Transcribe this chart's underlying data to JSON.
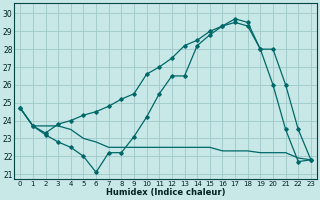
{
  "xlabel": "Humidex (Indice chaleur)",
  "background_color": "#c8e8e8",
  "grid_color": "#a0c8c8",
  "line_color": "#006868",
  "xlim": [
    -0.5,
    23.5
  ],
  "ylim": [
    20.7,
    30.6
  ],
  "yticks": [
    21,
    22,
    23,
    24,
    25,
    26,
    27,
    28,
    29,
    30
  ],
  "xticks": [
    0,
    1,
    2,
    3,
    4,
    5,
    6,
    7,
    8,
    9,
    10,
    11,
    12,
    13,
    14,
    15,
    16,
    17,
    18,
    19,
    20,
    21,
    22,
    23
  ],
  "series1_x": [
    0,
    1,
    2,
    3,
    4,
    5,
    6,
    7,
    8,
    9,
    10,
    11,
    12,
    13,
    14,
    15,
    16,
    17,
    18,
    19,
    20,
    21,
    22,
    23
  ],
  "series1_y": [
    24.7,
    23.7,
    23.2,
    22.8,
    22.5,
    22.0,
    21.1,
    22.2,
    22.2,
    23.1,
    24.2,
    25.5,
    26.5,
    26.5,
    28.2,
    28.8,
    29.3,
    29.7,
    29.5,
    28.0,
    26.0,
    23.5,
    21.7,
    21.8
  ],
  "series2_x": [
    0,
    1,
    2,
    3,
    4,
    5,
    6,
    7,
    8,
    9,
    10,
    11,
    12,
    13,
    14,
    15,
    16,
    17,
    18,
    19,
    20,
    21,
    22,
    23
  ],
  "series2_y": [
    24.7,
    23.7,
    23.7,
    23.7,
    23.5,
    23.0,
    22.8,
    22.5,
    22.5,
    22.5,
    22.5,
    22.5,
    22.5,
    22.5,
    22.5,
    22.5,
    22.3,
    22.3,
    22.3,
    22.2,
    22.2,
    22.2,
    21.9,
    21.8
  ],
  "series3_x": [
    0,
    1,
    2,
    3,
    4,
    5,
    6,
    7,
    8,
    9,
    10,
    11,
    12,
    13,
    14,
    15,
    16,
    17,
    18,
    19,
    20,
    21,
    22,
    23
  ],
  "series3_y": [
    24.7,
    23.7,
    23.3,
    23.8,
    24.0,
    24.3,
    24.5,
    24.8,
    25.2,
    25.5,
    26.6,
    27.0,
    27.5,
    28.2,
    28.5,
    29.0,
    29.3,
    29.5,
    29.3,
    28.0,
    28.0,
    26.0,
    23.5,
    21.8
  ]
}
